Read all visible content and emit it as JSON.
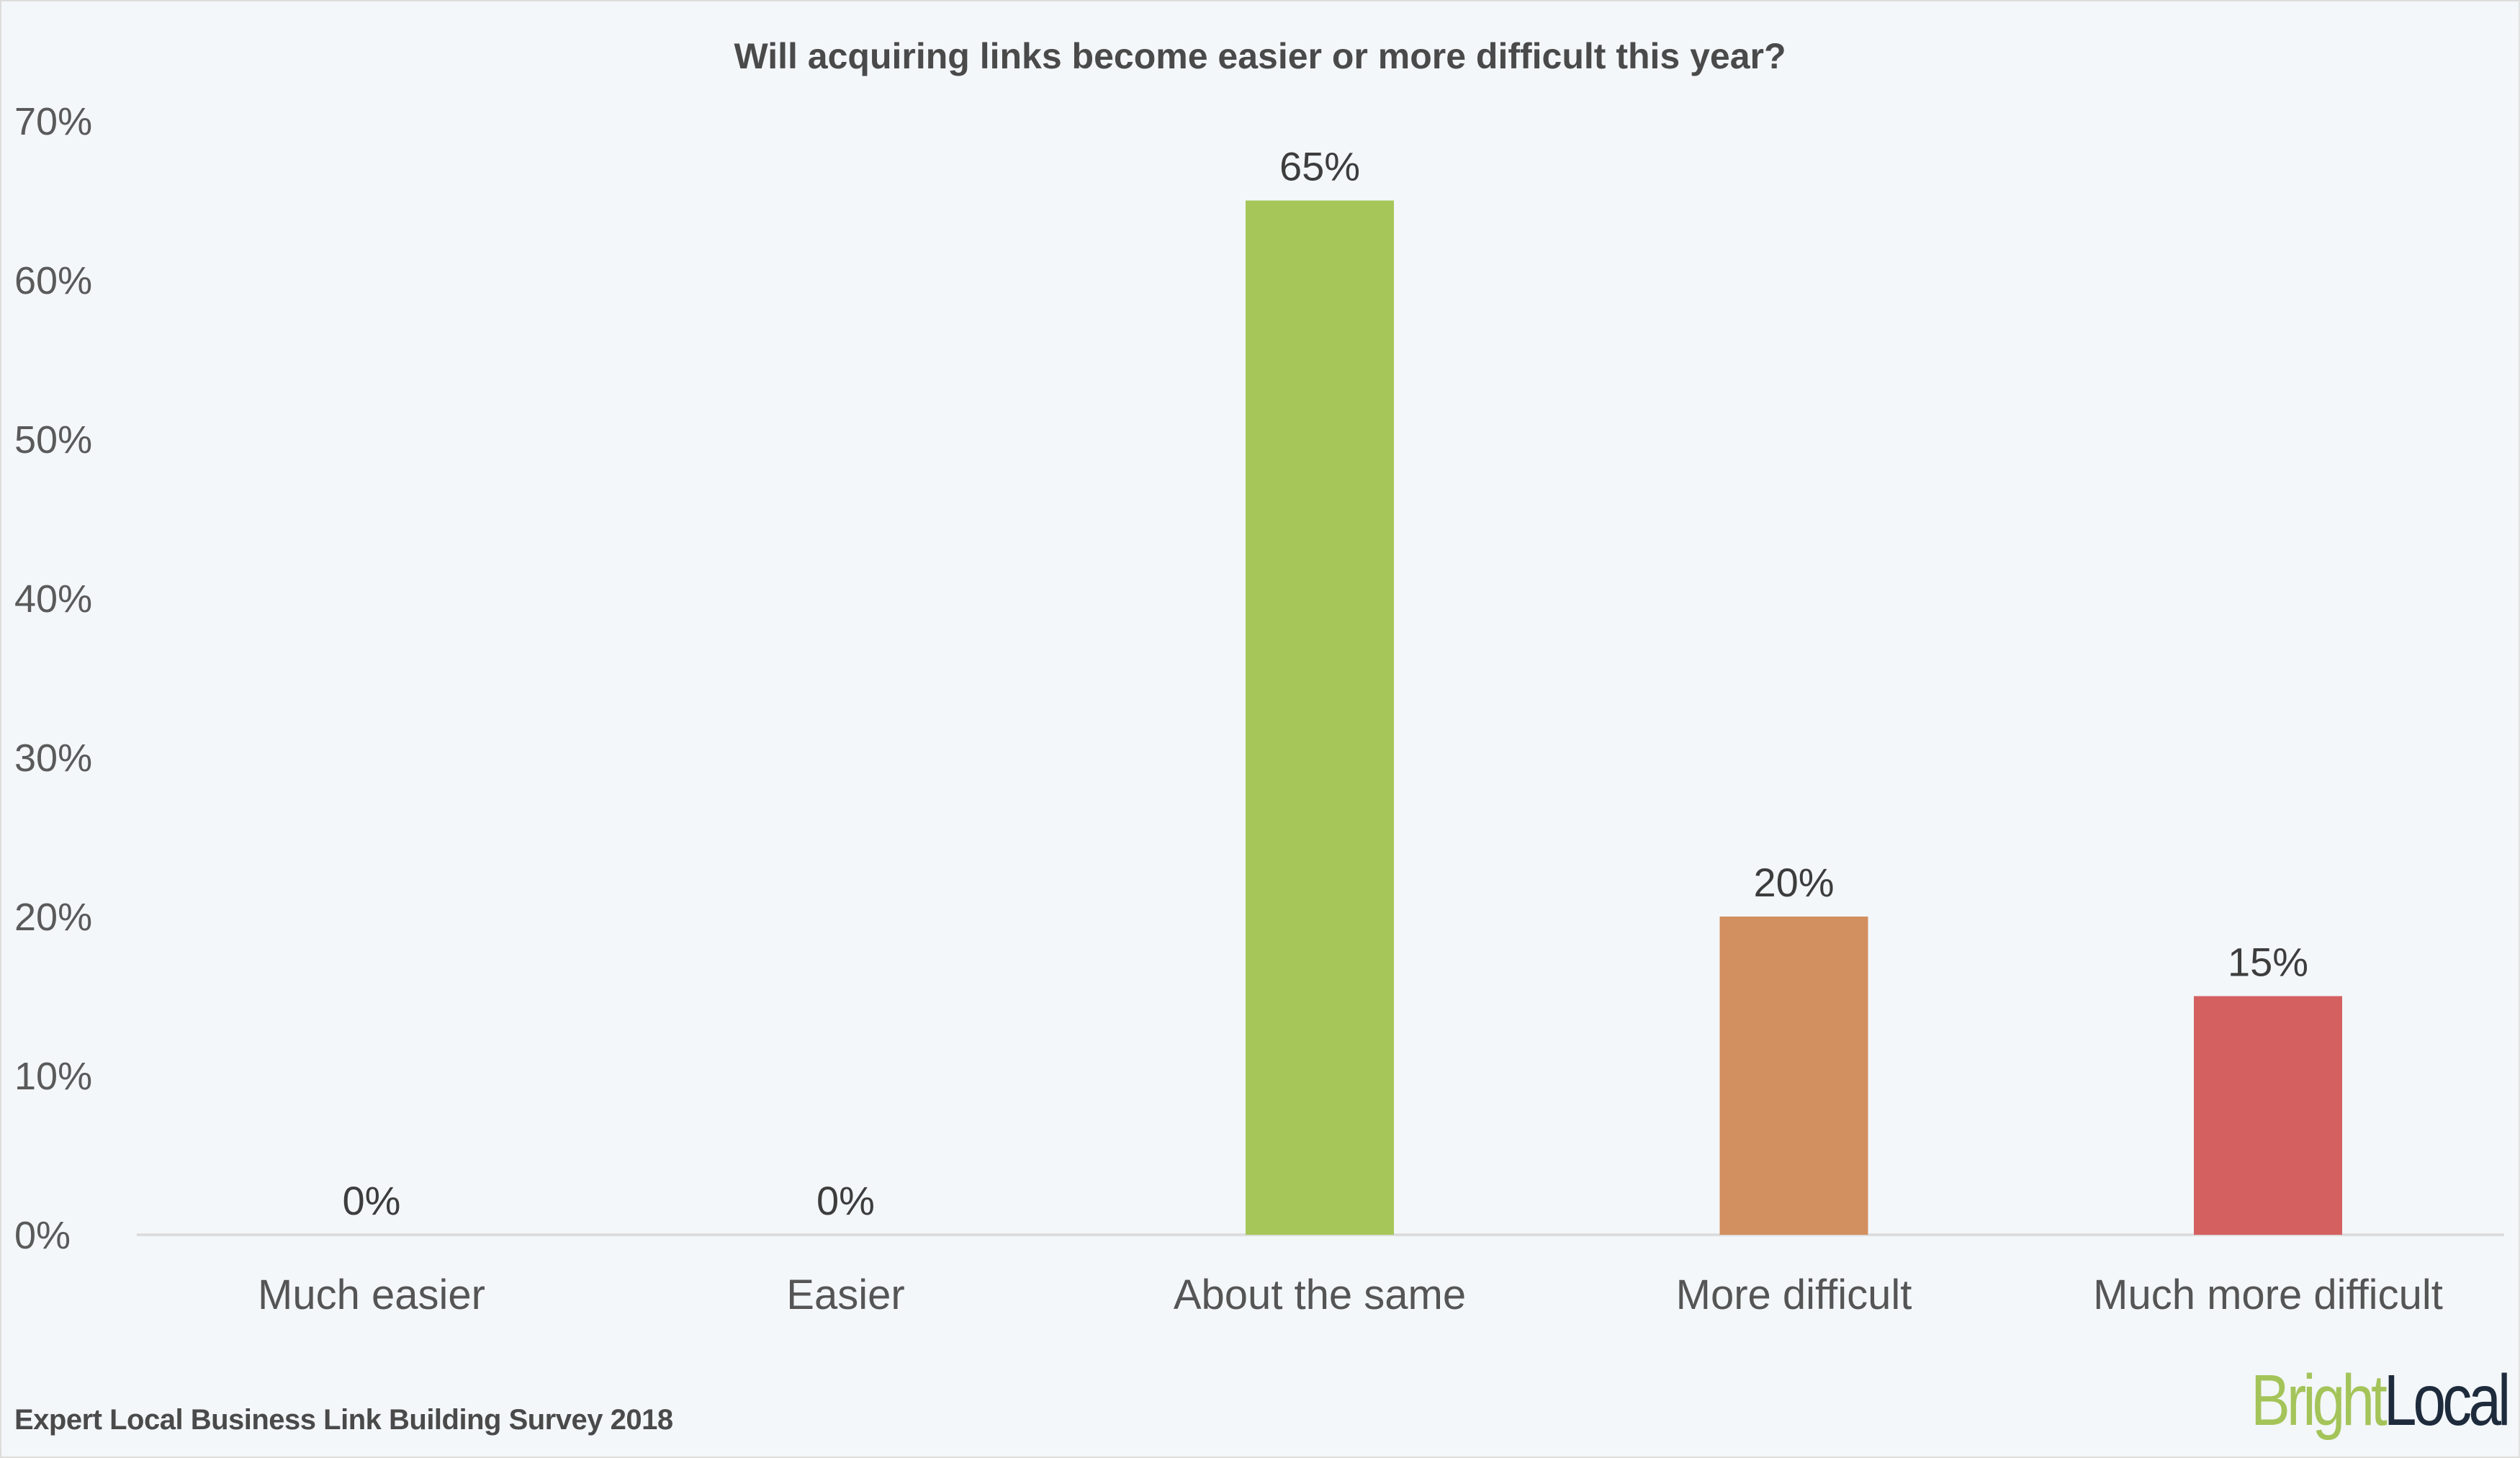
{
  "chart_data": {
    "type": "bar",
    "title": "Will acquiring links become easier or more difficult this year?",
    "categories": [
      "Much easier",
      "Easier",
      "About the same",
      "More difficult",
      "Much more difficult"
    ],
    "values": [
      0,
      0,
      65,
      20,
      15
    ],
    "data_labels": [
      "0%",
      "0%",
      "65%",
      "20%",
      "15%"
    ],
    "bar_colors": [
      "#a6c65a",
      "#a6c65a",
      "#a6c65a",
      "#d28f5f",
      "#d46060"
    ],
    "xlabel": "",
    "ylabel": "",
    "ylim": [
      0,
      70
    ],
    "yticks": [
      0,
      10,
      20,
      30,
      40,
      50,
      60,
      70
    ],
    "ytick_labels": [
      "0%",
      "10%",
      "20%",
      "30%",
      "40%",
      "50%",
      "60%",
      "70%"
    ],
    "grid": false,
    "legend": "none"
  },
  "footer": {
    "source": "Expert Local Business Link Building Survey 2018"
  },
  "logo": {
    "part1": "Bright",
    "part2": "Local",
    "color1": "#a4c45a",
    "color2": "#1e2b3c"
  },
  "colors": {
    "background": "#f3f7fa",
    "axis": "#dddddd",
    "text": "#555555"
  }
}
